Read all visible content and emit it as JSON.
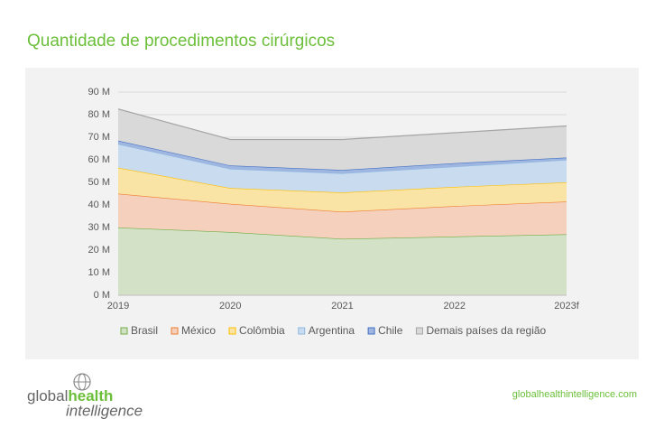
{
  "chart_data": {
    "type": "stacked_area",
    "title": "Quantidade de procedimentos cirúrgicos",
    "categories": [
      "2019",
      "2020",
      "2021",
      "2022",
      "2023f"
    ],
    "series": [
      {
        "name": "Brasil",
        "color": "#70ad47",
        "fill": "#d3e2c6",
        "values": [
          30,
          28,
          25,
          26,
          27
        ]
      },
      {
        "name": "México",
        "color": "#ed7d31",
        "fill": "#f5d0bd",
        "values": [
          15,
          12.5,
          12,
          13.5,
          14.5
        ]
      },
      {
        "name": "Colômbia",
        "color": "#ffc000",
        "fill": "#f9e4a5",
        "values": [
          11.5,
          7,
          8.5,
          8.5,
          8.5
        ]
      },
      {
        "name": "Argentina",
        "color": "#8fb8e2",
        "fill": "#c9dbee",
        "values": [
          10.5,
          8.5,
          8.5,
          9,
          10
        ]
      },
      {
        "name": "Chile",
        "color": "#4472c4",
        "fill": "#9fb6e0",
        "values": [
          1.5,
          1.5,
          1.5,
          1.5,
          1
        ]
      },
      {
        "name": "Demais países da região",
        "color": "#a5a5a5",
        "fill": "#d9d9d9",
        "values": [
          14,
          11.5,
          13.5,
          13.5,
          14
        ]
      }
    ],
    "ylim": [
      0,
      90
    ],
    "yticks": [
      {
        "value": 0,
        "label": "0 M"
      },
      {
        "value": 10,
        "label": "10 M"
      },
      {
        "value": 20,
        "label": "20 M"
      },
      {
        "value": 30,
        "label": "30 M"
      },
      {
        "value": 40,
        "label": "40 M"
      },
      {
        "value": 50,
        "label": "50 M"
      },
      {
        "value": 60,
        "label": "60 M"
      },
      {
        "value": 70,
        "label": "70 M"
      },
      {
        "value": 80,
        "label": "80 M"
      },
      {
        "value": 90,
        "label": "90 M"
      }
    ],
    "grid": true,
    "legend": "bottom"
  },
  "footer": {
    "logo": {
      "part1": "global",
      "part2": "health",
      "part3": "intelligence"
    },
    "url": "globalhealthintelligence.com"
  }
}
